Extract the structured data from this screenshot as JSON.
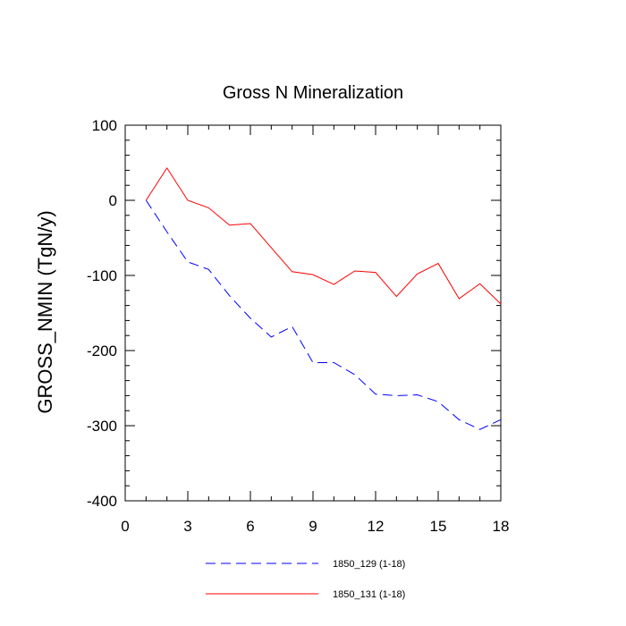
{
  "chart_data": {
    "type": "line",
    "title": "Gross N Mineralization",
    "xlabel": "",
    "ylabel": "GROSS_NMIN  (TgN/y)",
    "xlim": [
      0,
      18
    ],
    "ylim": [
      -400,
      100
    ],
    "x_ticks": [
      0,
      3,
      6,
      9,
      12,
      15,
      18
    ],
    "x_tick_labels": [
      "0",
      "3",
      "6",
      "9",
      "12",
      "15",
      "18"
    ],
    "y_ticks": [
      -400,
      -300,
      -200,
      -100,
      0,
      100
    ],
    "y_tick_labels": [
      "-400",
      "-300",
      "-200",
      "-100",
      "0",
      "100"
    ],
    "x_minor_step": 1,
    "y_minor_step": 20,
    "grid": false,
    "legend_position": "bottom",
    "x": [
      1,
      2,
      3,
      4,
      5,
      6,
      7,
      8,
      9,
      10,
      11,
      12,
      13,
      14,
      15,
      16,
      17,
      18
    ],
    "series": [
      {
        "name": "1850_129 (1-18)",
        "color": "#0000ff",
        "dash": "dashed",
        "values": [
          0,
          -42,
          -82,
          -92,
          -127,
          -157,
          -182,
          -168,
          -216,
          -216,
          -232,
          -258,
          -260,
          -259,
          -268,
          -292,
          -305,
          -292
        ]
      },
      {
        "name": "1850_131 (1-18)",
        "color": "#ff0000",
        "dash": "solid",
        "values": [
          0,
          43,
          0,
          -10,
          -33,
          -31,
          -63,
          -95,
          -99,
          -112,
          -94,
          -96,
          -128,
          -98,
          -84,
          -131,
          -111,
          -138
        ]
      }
    ]
  }
}
